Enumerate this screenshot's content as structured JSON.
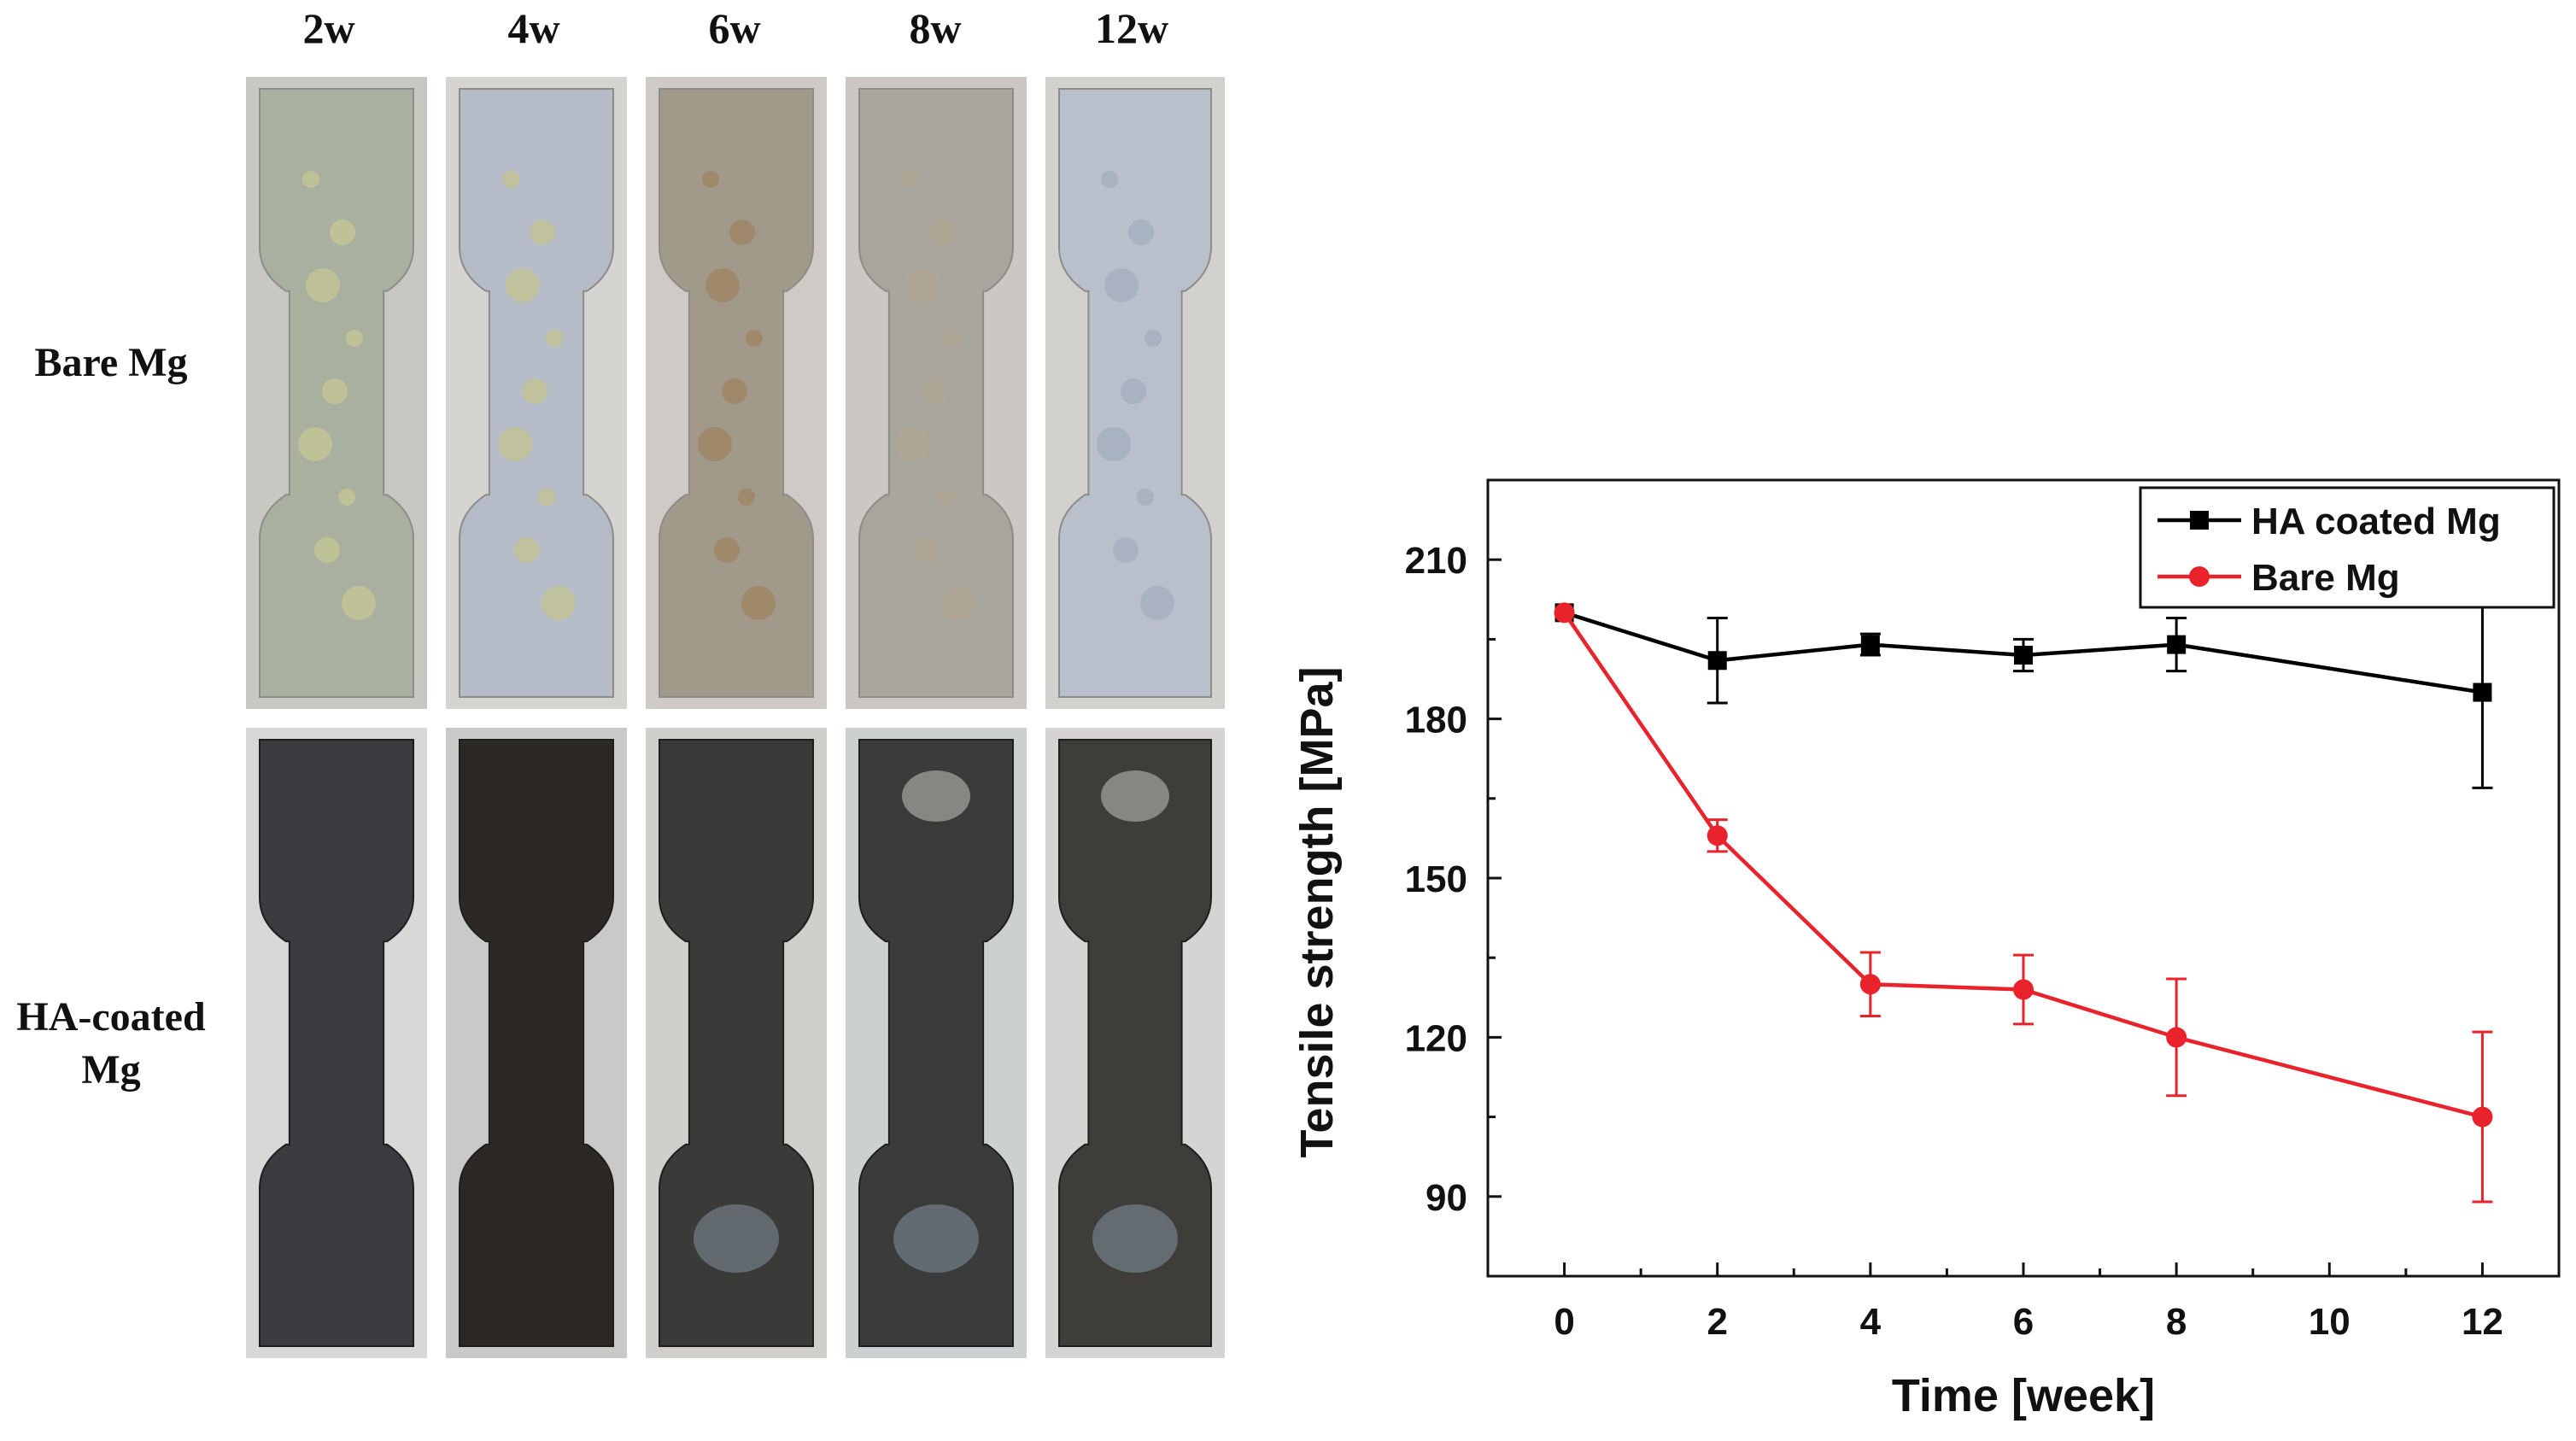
{
  "figure": {
    "columns": [
      "2w",
      "4w",
      "6w",
      "8w",
      "12w"
    ],
    "rows": [
      {
        "label_lines": [
          "Bare Mg"
        ],
        "specimen": "bare"
      },
      {
        "label_lines": [
          "HA-coated",
          "Mg"
        ],
        "specimen": "coated"
      }
    ]
  },
  "chart_data": {
    "type": "line",
    "xlabel": "Time [week]",
    "ylabel": "Tensile strength [MPa]",
    "x_ticks": [
      0,
      2,
      4,
      6,
      8,
      10,
      12
    ],
    "y_ticks": [
      90,
      120,
      150,
      180,
      210
    ],
    "xlim": [
      -1,
      13
    ],
    "ylim": [
      75,
      225
    ],
    "grid": false,
    "legend": "top-right",
    "series": [
      {
        "name": "HA coated Mg",
        "color": "#000000",
        "marker": "square",
        "x": [
          0,
          2,
          4,
          6,
          8,
          12
        ],
        "y": [
          200,
          191,
          194,
          192,
          194,
          185
        ],
        "err": [
          0,
          8,
          2,
          3,
          5,
          18
        ]
      },
      {
        "name": "Bare Mg",
        "color": "#e8232b",
        "marker": "circle",
        "x": [
          0,
          2,
          4,
          6,
          8,
          12
        ],
        "y": [
          200,
          158,
          130,
          129,
          120,
          105
        ],
        "err": [
          0,
          3,
          6,
          6.5,
          11,
          16
        ]
      }
    ]
  }
}
